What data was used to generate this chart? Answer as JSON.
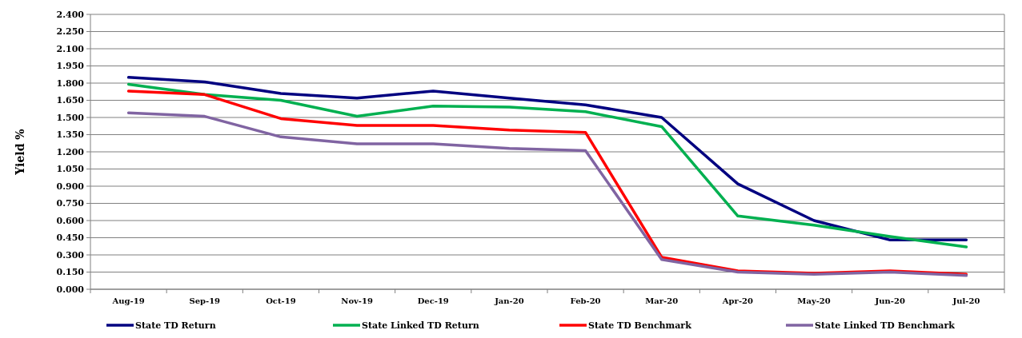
{
  "chart_data": {
    "type": "line",
    "ylabel": "Yield %",
    "categories": [
      "Aug-19",
      "Sep-19",
      "Oct-19",
      "Nov-19",
      "Dec-19",
      "Jan-20",
      "Feb-20",
      "Mar-20",
      "Apr-20",
      "May-20",
      "Jun-20",
      "Jul-20"
    ],
    "series": [
      {
        "name": "State TD Return",
        "color": "#000080",
        "values": [
          1.85,
          1.81,
          1.71,
          1.67,
          1.73,
          1.67,
          1.61,
          1.5,
          0.92,
          0.6,
          0.43,
          0.43
        ]
      },
      {
        "name": "State Linked TD Return",
        "color": "#00b050",
        "values": [
          1.79,
          1.7,
          1.65,
          1.51,
          1.6,
          1.59,
          1.55,
          1.42,
          0.64,
          0.56,
          0.46,
          0.37
        ]
      },
      {
        "name": "State TD Benchmark",
        "color": "#ff0000",
        "values": [
          1.73,
          1.7,
          1.49,
          1.43,
          1.43,
          1.39,
          1.37,
          0.28,
          0.16,
          0.14,
          0.16,
          0.13
        ]
      },
      {
        "name": "State Linked TD Benchmark",
        "color": "#8064a2",
        "values": [
          1.54,
          1.51,
          1.33,
          1.27,
          1.27,
          1.23,
          1.21,
          0.26,
          0.15,
          0.13,
          0.15,
          0.12
        ]
      }
    ],
    "ylim": [
      0,
      2.4
    ],
    "yticks": [
      {
        "value": 0,
        "label": "0.000"
      },
      {
        "value": 0.15,
        "label": "0.150"
      },
      {
        "value": 0.3,
        "label": "0.300"
      },
      {
        "value": 0.45,
        "label": "0.450"
      },
      {
        "value": 0.6,
        "label": "0.600"
      },
      {
        "value": 0.75,
        "label": "0.750"
      },
      {
        "value": 0.9,
        "label": "0.900"
      },
      {
        "value": 1.05,
        "label": "1.050"
      },
      {
        "value": 1.2,
        "label": "1.200"
      },
      {
        "value": 1.35,
        "label": "1.350"
      },
      {
        "value": 1.5,
        "label": "1.500"
      },
      {
        "value": 1.65,
        "label": "1.650"
      },
      {
        "value": 1.8,
        "label": "1.800"
      },
      {
        "value": 1.95,
        "label": "1.950"
      },
      {
        "value": 2.1,
        "label": "2.100"
      },
      {
        "value": 2.25,
        "label": "2.250"
      },
      {
        "value": 2.4,
        "label": "2.400"
      }
    ],
    "grid": "y",
    "legend": "bottom",
    "marker": "none",
    "line_style": "solid"
  }
}
